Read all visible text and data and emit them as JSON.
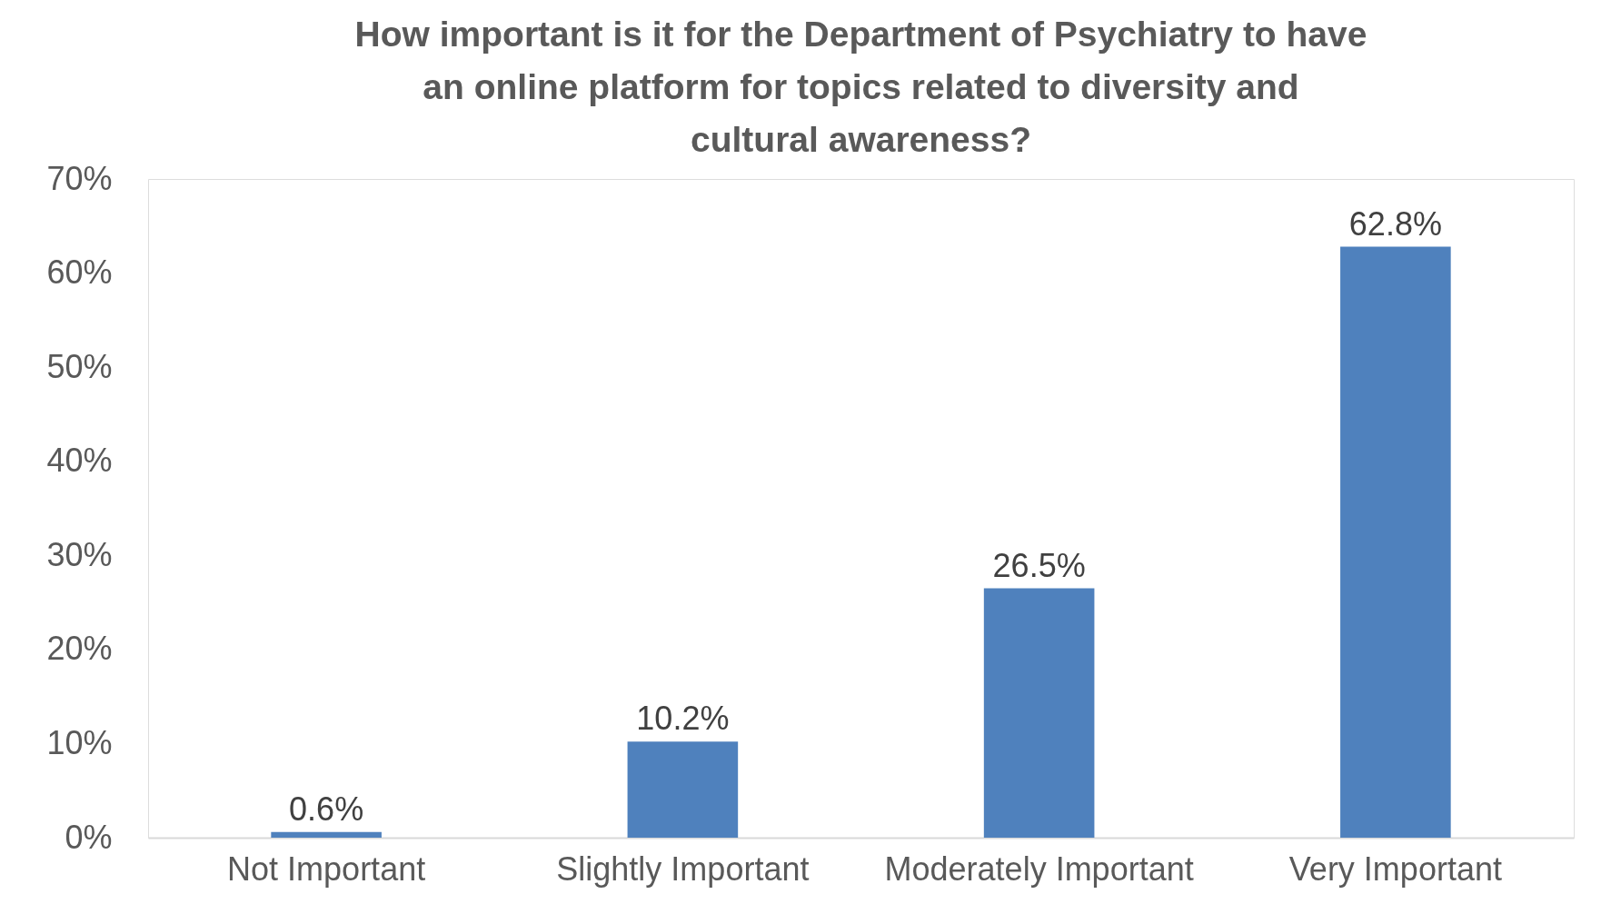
{
  "chart_data": {
    "type": "bar",
    "title": "How important is it for the Department of Psychiatry to have an online platform for topics related to diversity and cultural awareness?",
    "categories": [
      "Not Important",
      "Slightly Important",
      "Moderately Important",
      "Very Important"
    ],
    "values": [
      0.6,
      10.2,
      26.5,
      62.8
    ],
    "value_labels": [
      "0.6%",
      "10.2%",
      "26.5%",
      "62.8%"
    ],
    "color": "#4f81bd",
    "ylim": [
      0,
      70
    ],
    "yticks": [
      {
        "value": 0,
        "label": "0%"
      },
      {
        "value": 10,
        "label": "10%"
      },
      {
        "value": 20,
        "label": "20%"
      },
      {
        "value": 30,
        "label": "30%"
      },
      {
        "value": 40,
        "label": "40%"
      },
      {
        "value": 50,
        "label": "50%"
      },
      {
        "value": 60,
        "label": "60%"
      },
      {
        "value": 70,
        "label": "70%"
      }
    ],
    "grid": false
  }
}
